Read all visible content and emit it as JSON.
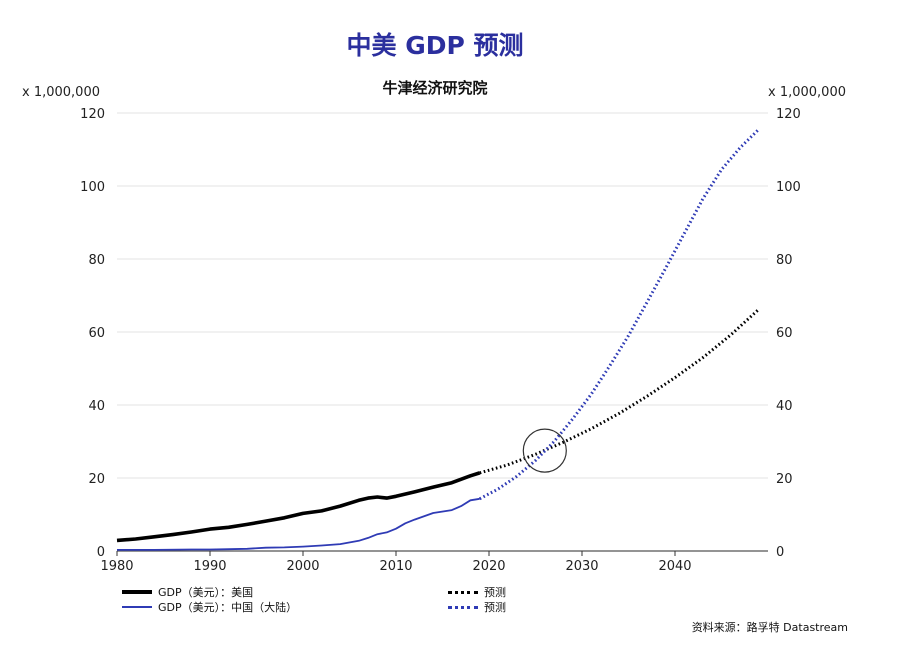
{
  "chart_data": {
    "type": "line",
    "title": "中美 GDP 预测",
    "subtitle": "牛津经济研究院",
    "unit_left": "x 1,000,000",
    "unit_right": "x 1,000,000",
    "xlim": [
      1980,
      2050
    ],
    "ylim": [
      0,
      120
    ],
    "x_ticks": [
      1980,
      1990,
      2000,
      2010,
      2020,
      2030,
      2040
    ],
    "y_ticks": [
      0,
      20,
      40,
      60,
      80,
      100,
      120
    ],
    "grid": true,
    "series": [
      {
        "name": "GDP（美元）：美国",
        "color": "#000000",
        "style": "solid",
        "points": [
          [
            1980,
            2.9
          ],
          [
            1982,
            3.3
          ],
          [
            1984,
            3.9
          ],
          [
            1986,
            4.5
          ],
          [
            1988,
            5.2
          ],
          [
            1990,
            6.0
          ],
          [
            1992,
            6.5
          ],
          [
            1994,
            7.3
          ],
          [
            1996,
            8.2
          ],
          [
            1998,
            9.1
          ],
          [
            2000,
            10.3
          ],
          [
            2002,
            11.0
          ],
          [
            2004,
            12.3
          ],
          [
            2006,
            13.9
          ],
          [
            2007,
            14.5
          ],
          [
            2008,
            14.8
          ],
          [
            2009,
            14.5
          ],
          [
            2010,
            15.0
          ],
          [
            2012,
            16.2
          ],
          [
            2014,
            17.5
          ],
          [
            2016,
            18.7
          ],
          [
            2018,
            20.6
          ],
          [
            2019,
            21.4
          ]
        ]
      },
      {
        "name": "GDP（美元）：中国（大陆）",
        "color": "#2f3bb5",
        "style": "solid",
        "points": [
          [
            1980,
            0.3
          ],
          [
            1984,
            0.3
          ],
          [
            1988,
            0.4
          ],
          [
            1990,
            0.4
          ],
          [
            1992,
            0.5
          ],
          [
            1994,
            0.6
          ],
          [
            1996,
            0.9
          ],
          [
            1998,
            1.0
          ],
          [
            2000,
            1.2
          ],
          [
            2002,
            1.5
          ],
          [
            2004,
            1.9
          ],
          [
            2006,
            2.8
          ],
          [
            2007,
            3.6
          ],
          [
            2008,
            4.6
          ],
          [
            2009,
            5.1
          ],
          [
            2010,
            6.1
          ],
          [
            2011,
            7.6
          ],
          [
            2012,
            8.6
          ],
          [
            2014,
            10.4
          ],
          [
            2016,
            11.2
          ],
          [
            2017,
            12.3
          ],
          [
            2018,
            13.9
          ],
          [
            2019,
            14.3
          ]
        ]
      },
      {
        "name": "预测",
        "color": "#000000",
        "style": "dotted",
        "points": [
          [
            2019,
            21.4
          ],
          [
            2022,
            23.6
          ],
          [
            2025,
            26.5
          ],
          [
            2028,
            29.8
          ],
          [
            2031,
            33.5
          ],
          [
            2034,
            37.7
          ],
          [
            2037,
            42.4
          ],
          [
            2040,
            47.5
          ],
          [
            2043,
            53.0
          ],
          [
            2046,
            59.2
          ],
          [
            2049,
            66.2
          ]
        ]
      },
      {
        "name": "预测",
        "color": "#2f3bb5",
        "style": "dotted",
        "points": [
          [
            2019,
            14.3
          ],
          [
            2021,
            17.0
          ],
          [
            2023,
            20.5
          ],
          [
            2025,
            24.8
          ],
          [
            2027,
            30.0
          ],
          [
            2029,
            36.2
          ],
          [
            2031,
            43.0
          ],
          [
            2033,
            50.8
          ],
          [
            2035,
            59.0
          ],
          [
            2037,
            68.2
          ],
          [
            2039,
            77.5
          ],
          [
            2041,
            87.0
          ],
          [
            2043,
            96.5
          ],
          [
            2045,
            104.5
          ],
          [
            2047,
            110.5
          ],
          [
            2049,
            115.5
          ]
        ]
      }
    ],
    "annotations": [
      {
        "type": "circle",
        "x": 2026,
        "y": 27.5,
        "label": "crossover"
      }
    ],
    "legend": [
      {
        "label": "GDP（美元）：美国",
        "style": "solid",
        "color": "#000000"
      },
      {
        "label": "GDP（美元）：中国（大陆）",
        "style": "solid",
        "color": "#2f3bb5"
      },
      {
        "label": "预测",
        "style": "dotted",
        "color": "#000000"
      },
      {
        "label": "预测",
        "style": "dotted",
        "color": "#2f3bb5"
      }
    ],
    "legend_position": "bottom-left",
    "source": "资料来源：路孚特 Datastream"
  }
}
